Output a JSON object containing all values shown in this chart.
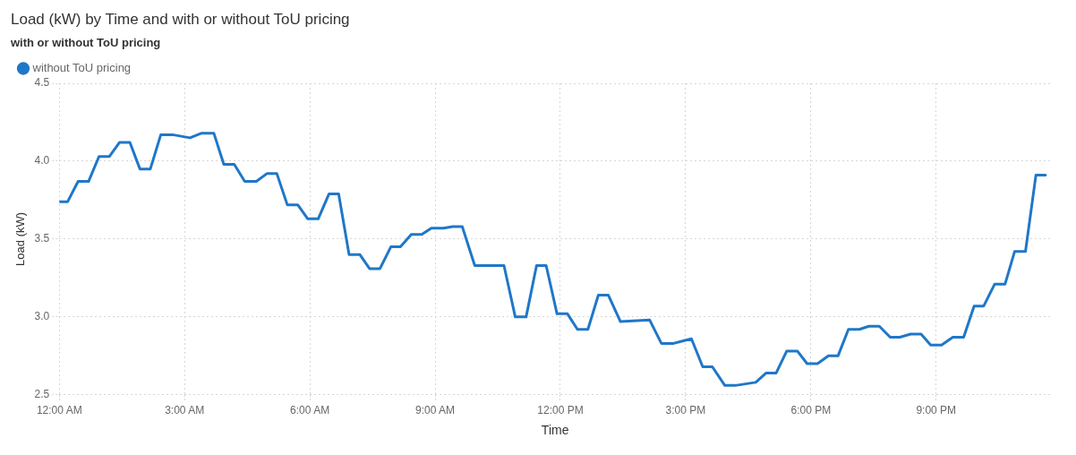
{
  "chart_data": {
    "type": "line",
    "title": "Load (kW) by Time and with or without ToU pricing",
    "xlabel": "Time",
    "ylabel": "Load (kW)",
    "legend_title": "with or without ToU pricing",
    "legend": "top left",
    "grid": true,
    "line_style": "solid",
    "marker": "none",
    "xlim": [
      0,
      23.75
    ],
    "xticks": [
      {
        "value": 0,
        "label": "12:00 AM"
      },
      {
        "value": 3,
        "label": "3:00 AM"
      },
      {
        "value": 6,
        "label": "6:00 AM"
      },
      {
        "value": 9,
        "label": "9:00 AM"
      },
      {
        "value": 12,
        "label": "12:00 PM"
      },
      {
        "value": 15,
        "label": "3:00 PM"
      },
      {
        "value": 18,
        "label": "6:00 PM"
      },
      {
        "value": 21,
        "label": "9:00 PM"
      }
    ],
    "ylim": [
      2.5,
      4.5
    ],
    "yticks": [
      2.5,
      {
        "value": 3,
        "label": "3.0"
      },
      3.5,
      {
        "value": 4,
        "label": "4.0"
      },
      4.5
    ],
    "series": [
      {
        "name": "without ToU pricing",
        "color": "#1f77c8",
        "x": [
          0,
          0.2,
          0.45,
          0.7,
          0.95,
          1.2,
          1.44,
          1.69,
          1.93,
          2.18,
          2.43,
          2.71,
          3.13,
          3.41,
          3.7,
          3.94,
          4.19,
          4.44,
          4.72,
          4.97,
          5.21,
          5.46,
          5.71,
          5.95,
          6.2,
          6.46,
          6.69,
          6.94,
          7.2,
          7.43,
          7.68,
          7.94,
          8.17,
          8.43,
          8.68,
          8.91,
          9.2,
          9.42,
          9.65,
          9.95,
          10.65,
          10.92,
          11.18,
          11.43,
          11.66,
          11.92,
          12.17,
          12.41,
          12.66,
          12.91,
          13.15,
          13.44,
          14.14,
          14.42,
          14.71,
          15.14,
          15.41,
          15.64,
          15.94,
          16.19,
          16.68,
          16.93,
          17.17,
          17.42,
          17.68,
          17.91,
          18.16,
          18.42,
          18.65,
          18.9,
          19.16,
          19.39,
          19.64,
          19.9,
          20.13,
          20.39,
          20.64,
          20.87,
          21.13,
          21.4,
          21.66,
          21.91,
          22.14,
          22.4,
          22.65,
          22.88,
          23.14,
          23.39,
          23.62
        ],
        "values": [
          3.74,
          3.74,
          3.87,
          3.87,
          4.03,
          4.03,
          4.12,
          4.12,
          3.95,
          3.95,
          4.17,
          4.17,
          4.15,
          4.18,
          4.18,
          3.98,
          3.98,
          3.87,
          3.87,
          3.92,
          3.92,
          3.72,
          3.72,
          3.63,
          3.63,
          3.79,
          3.79,
          3.4,
          3.4,
          3.31,
          3.31,
          3.45,
          3.45,
          3.53,
          3.53,
          3.57,
          3.57,
          3.58,
          3.58,
          3.33,
          3.33,
          3.0,
          3.0,
          3.33,
          3.33,
          3.02,
          3.02,
          2.92,
          2.92,
          3.14,
          3.14,
          2.97,
          2.98,
          2.83,
          2.83,
          2.86,
          2.68,
          2.68,
          2.56,
          2.56,
          2.58,
          2.64,
          2.64,
          2.78,
          2.78,
          2.7,
          2.7,
          2.75,
          2.75,
          2.92,
          2.92,
          2.94,
          2.94,
          2.87,
          2.87,
          2.89,
          2.89,
          2.82,
          2.82,
          2.87,
          2.87,
          3.07,
          3.07,
          3.21,
          3.21,
          3.42,
          3.42,
          3.91,
          3.91
        ]
      }
    ]
  }
}
